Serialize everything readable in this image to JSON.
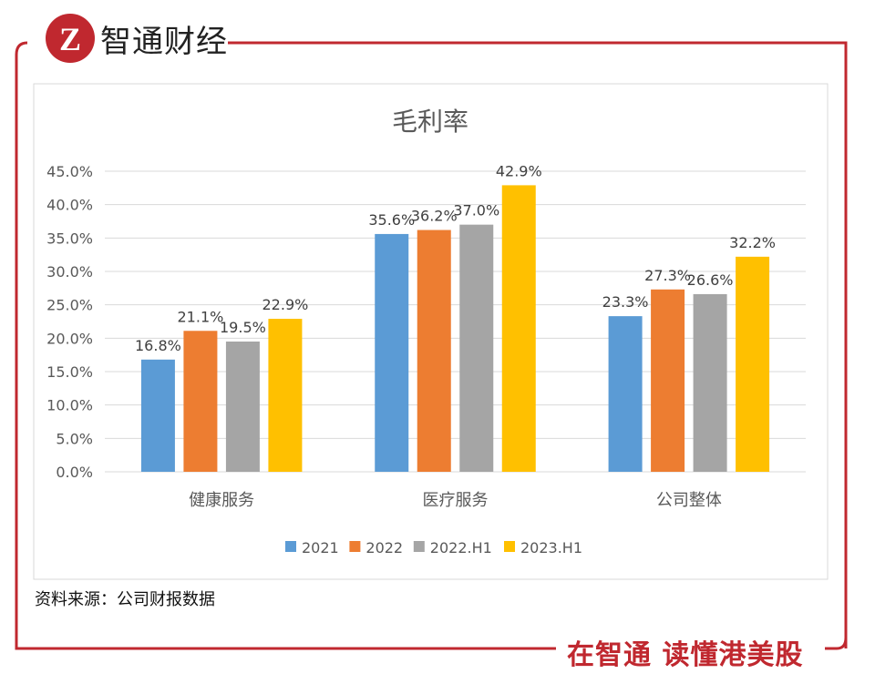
{
  "brand": {
    "name": "智通财经",
    "logo_letter": "Z",
    "slogan": "在智通  读懂港美股",
    "color": "#c0282f"
  },
  "source": "资料来源：公司财报数据",
  "chart_data": {
    "type": "bar",
    "title": "毛利率",
    "categories": [
      "健康服务",
      "医疗服务",
      "公司整体"
    ],
    "series": [
      {
        "name": "2021",
        "color": "#5b9bd5",
        "values": [
          16.8,
          35.6,
          23.3
        ]
      },
      {
        "name": "2022",
        "color": "#ed7d31",
        "values": [
          21.1,
          36.2,
          27.3
        ]
      },
      {
        "name": "2022.H1",
        "color": "#a5a5a5",
        "values": [
          19.5,
          37.0,
          26.6
        ]
      },
      {
        "name": "2023.H1",
        "color": "#ffc000",
        "values": [
          22.9,
          42.9,
          32.2
        ]
      }
    ],
    "ylim": [
      0,
      45
    ],
    "yticks": [
      "0.0%",
      "5.0%",
      "10.0%",
      "15.0%",
      "20.0%",
      "25.0%",
      "30.0%",
      "35.0%",
      "40.0%",
      "45.0%"
    ],
    "grid": true,
    "legend": "bottom"
  }
}
